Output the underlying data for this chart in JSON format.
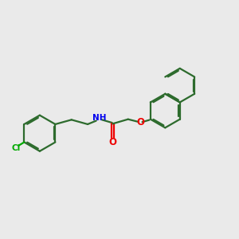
{
  "background_color": "#eaeaea",
  "bond_color": "#2d6b2d",
  "nh_color": "#0000ee",
  "o_color": "#ee0000",
  "cl_color": "#00aa00",
  "line_width": 1.6,
  "figsize": [
    3.0,
    3.0
  ],
  "dpi": 100,
  "xlim": [
    0.0,
    9.5
  ],
  "ylim": [
    1.2,
    6.2
  ]
}
